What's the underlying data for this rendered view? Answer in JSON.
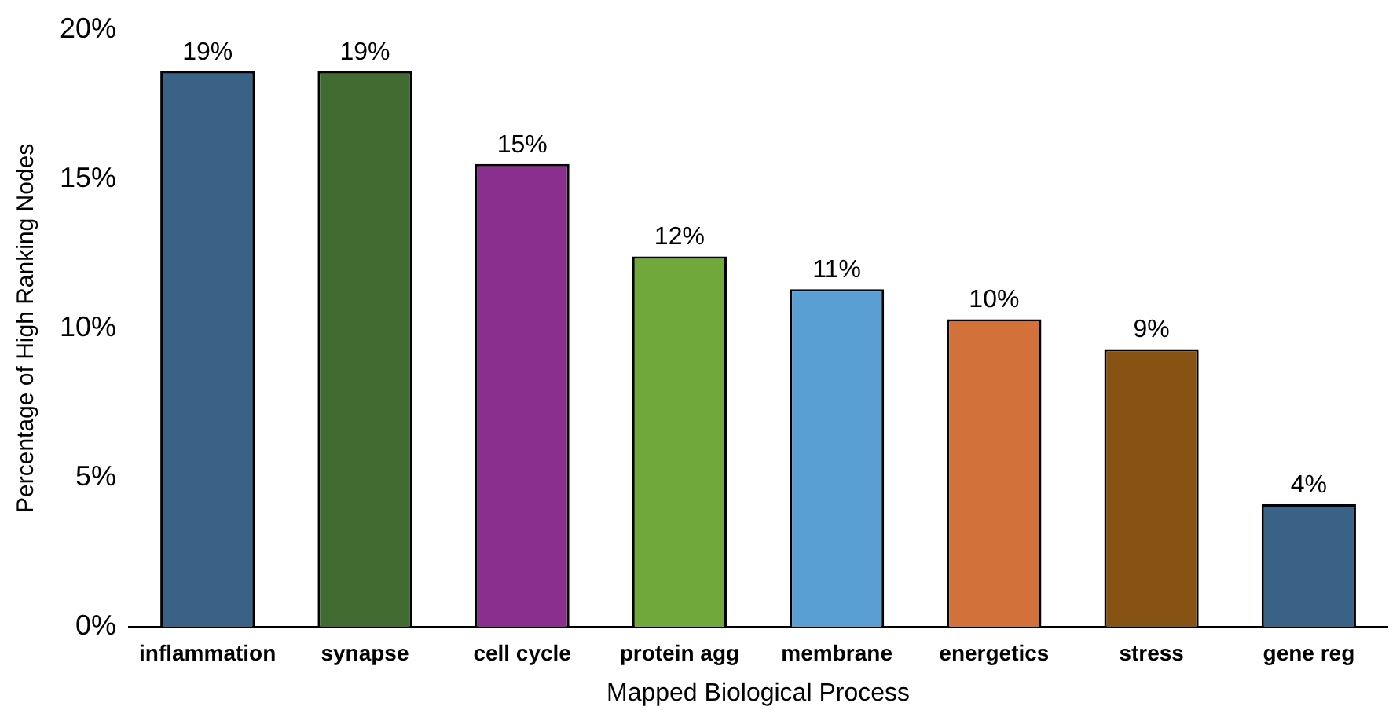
{
  "chart_data": {
    "type": "bar",
    "xlabel": "Mapped Biological Process",
    "ylabel": "Percentage of High Ranking Nodes",
    "categories": [
      "inflammation",
      "synapse",
      "cell cycle",
      "protein agg",
      "membrane",
      "energetics",
      "stress",
      "gene reg"
    ],
    "values": [
      18.6,
      18.6,
      15.5,
      12.4,
      11.3,
      10.3,
      9.3,
      4.1
    ],
    "colors": [
      "#3a6186",
      "#426b31",
      "#8b2f8f",
      "#70a83c",
      "#5a9fd4",
      "#d3713b",
      "#875312",
      "#3a6186"
    ],
    "value_labels": [
      "19%",
      "19%",
      "15%",
      "12%",
      "11%",
      "10%",
      "9%",
      "4%"
    ],
    "ylim": [
      0,
      20
    ],
    "yticks": [
      {
        "value": 0,
        "label": "0%"
      },
      {
        "value": 5,
        "label": "5%"
      },
      {
        "value": 10,
        "label": "10%"
      },
      {
        "value": 15,
        "label": "15%"
      },
      {
        "value": 20,
        "label": "20%"
      }
    ],
    "grid": false,
    "legend": false
  }
}
